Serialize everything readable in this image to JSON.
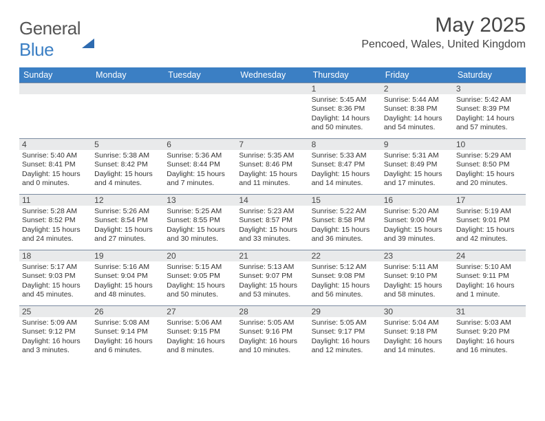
{
  "logo": {
    "word1": "General",
    "word2": "Blue"
  },
  "title": "May 2025",
  "location": "Pencoed, Wales, United Kingdom",
  "colors": {
    "header_bg": "#3b7fc4",
    "header_text": "#ffffff",
    "daynum_bg": "#e9eaeb",
    "row_border": "#7a8aa0",
    "body_text": "#333333",
    "page_bg": "#ffffff"
  },
  "layout": {
    "cols": 7,
    "rows": 5
  },
  "weekdays": [
    "Sunday",
    "Monday",
    "Tuesday",
    "Wednesday",
    "Thursday",
    "Friday",
    "Saturday"
  ],
  "weeks": [
    [
      {
        "n": "",
        "sr": "",
        "ss": "",
        "dl": ""
      },
      {
        "n": "",
        "sr": "",
        "ss": "",
        "dl": ""
      },
      {
        "n": "",
        "sr": "",
        "ss": "",
        "dl": ""
      },
      {
        "n": "",
        "sr": "",
        "ss": "",
        "dl": ""
      },
      {
        "n": "1",
        "sr": "5:45 AM",
        "ss": "8:36 PM",
        "dl": "14 hours and 50 minutes."
      },
      {
        "n": "2",
        "sr": "5:44 AM",
        "ss": "8:38 PM",
        "dl": "14 hours and 54 minutes."
      },
      {
        "n": "3",
        "sr": "5:42 AM",
        "ss": "8:39 PM",
        "dl": "14 hours and 57 minutes."
      }
    ],
    [
      {
        "n": "4",
        "sr": "5:40 AM",
        "ss": "8:41 PM",
        "dl": "15 hours and 0 minutes."
      },
      {
        "n": "5",
        "sr": "5:38 AM",
        "ss": "8:42 PM",
        "dl": "15 hours and 4 minutes."
      },
      {
        "n": "6",
        "sr": "5:36 AM",
        "ss": "8:44 PM",
        "dl": "15 hours and 7 minutes."
      },
      {
        "n": "7",
        "sr": "5:35 AM",
        "ss": "8:46 PM",
        "dl": "15 hours and 11 minutes."
      },
      {
        "n": "8",
        "sr": "5:33 AM",
        "ss": "8:47 PM",
        "dl": "15 hours and 14 minutes."
      },
      {
        "n": "9",
        "sr": "5:31 AM",
        "ss": "8:49 PM",
        "dl": "15 hours and 17 minutes."
      },
      {
        "n": "10",
        "sr": "5:29 AM",
        "ss": "8:50 PM",
        "dl": "15 hours and 20 minutes."
      }
    ],
    [
      {
        "n": "11",
        "sr": "5:28 AM",
        "ss": "8:52 PM",
        "dl": "15 hours and 24 minutes."
      },
      {
        "n": "12",
        "sr": "5:26 AM",
        "ss": "8:54 PM",
        "dl": "15 hours and 27 minutes."
      },
      {
        "n": "13",
        "sr": "5:25 AM",
        "ss": "8:55 PM",
        "dl": "15 hours and 30 minutes."
      },
      {
        "n": "14",
        "sr": "5:23 AM",
        "ss": "8:57 PM",
        "dl": "15 hours and 33 minutes."
      },
      {
        "n": "15",
        "sr": "5:22 AM",
        "ss": "8:58 PM",
        "dl": "15 hours and 36 minutes."
      },
      {
        "n": "16",
        "sr": "5:20 AM",
        "ss": "9:00 PM",
        "dl": "15 hours and 39 minutes."
      },
      {
        "n": "17",
        "sr": "5:19 AM",
        "ss": "9:01 PM",
        "dl": "15 hours and 42 minutes."
      }
    ],
    [
      {
        "n": "18",
        "sr": "5:17 AM",
        "ss": "9:03 PM",
        "dl": "15 hours and 45 minutes."
      },
      {
        "n": "19",
        "sr": "5:16 AM",
        "ss": "9:04 PM",
        "dl": "15 hours and 48 minutes."
      },
      {
        "n": "20",
        "sr": "5:15 AM",
        "ss": "9:05 PM",
        "dl": "15 hours and 50 minutes."
      },
      {
        "n": "21",
        "sr": "5:13 AM",
        "ss": "9:07 PM",
        "dl": "15 hours and 53 minutes."
      },
      {
        "n": "22",
        "sr": "5:12 AM",
        "ss": "9:08 PM",
        "dl": "15 hours and 56 minutes."
      },
      {
        "n": "23",
        "sr": "5:11 AM",
        "ss": "9:10 PM",
        "dl": "15 hours and 58 minutes."
      },
      {
        "n": "24",
        "sr": "5:10 AM",
        "ss": "9:11 PM",
        "dl": "16 hours and 1 minute."
      }
    ],
    [
      {
        "n": "25",
        "sr": "5:09 AM",
        "ss": "9:12 PM",
        "dl": "16 hours and 3 minutes."
      },
      {
        "n": "26",
        "sr": "5:08 AM",
        "ss": "9:14 PM",
        "dl": "16 hours and 6 minutes."
      },
      {
        "n": "27",
        "sr": "5:06 AM",
        "ss": "9:15 PM",
        "dl": "16 hours and 8 minutes."
      },
      {
        "n": "28",
        "sr": "5:05 AM",
        "ss": "9:16 PM",
        "dl": "16 hours and 10 minutes."
      },
      {
        "n": "29",
        "sr": "5:05 AM",
        "ss": "9:17 PM",
        "dl": "16 hours and 12 minutes."
      },
      {
        "n": "30",
        "sr": "5:04 AM",
        "ss": "9:18 PM",
        "dl": "16 hours and 14 minutes."
      },
      {
        "n": "31",
        "sr": "5:03 AM",
        "ss": "9:20 PM",
        "dl": "16 hours and 16 minutes."
      }
    ]
  ],
  "labels": {
    "sunrise": "Sunrise:",
    "sunset": "Sunset:",
    "daylight": "Daylight:"
  }
}
